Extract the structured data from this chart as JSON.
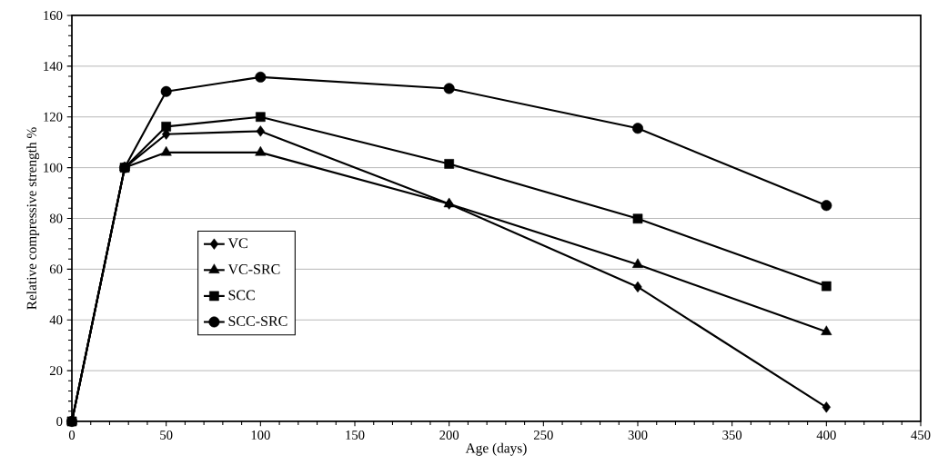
{
  "chart_data": {
    "type": "line",
    "xlabel": "Age (days)",
    "ylabel": "Relative compressive strength %",
    "x": [
      0,
      28,
      50,
      100,
      200,
      300,
      400
    ],
    "series": [
      {
        "name": "VC",
        "color": "#000000",
        "marker": "diamond",
        "values": [
          0,
          100,
          113.2,
          114.4,
          85.7,
          53,
          5.6
        ]
      },
      {
        "name": "VC-SRC",
        "color": "#000000",
        "marker": "triangle",
        "values": [
          0,
          100,
          106,
          106,
          85.7,
          61.8,
          35.3
        ]
      },
      {
        "name": "SCC",
        "color": "#000000",
        "marker": "square",
        "values": [
          0,
          100,
          116.2,
          120,
          101.5,
          79.9,
          53.3
        ]
      },
      {
        "name": "SCC-SRC",
        "color": "#000000",
        "marker": "circle",
        "values": [
          0,
          100,
          130,
          135.7,
          131.2,
          115.5,
          85.1
        ]
      }
    ],
    "xlim": [
      0,
      450
    ],
    "ylim": [
      0,
      160
    ],
    "xticks": [
      0,
      50,
      100,
      150,
      200,
      250,
      300,
      350,
      400,
      450
    ],
    "yticks": [
      0,
      20,
      40,
      60,
      80,
      100,
      120,
      140,
      160
    ],
    "grid": "y",
    "legend": "left",
    "line_style": "solid"
  }
}
